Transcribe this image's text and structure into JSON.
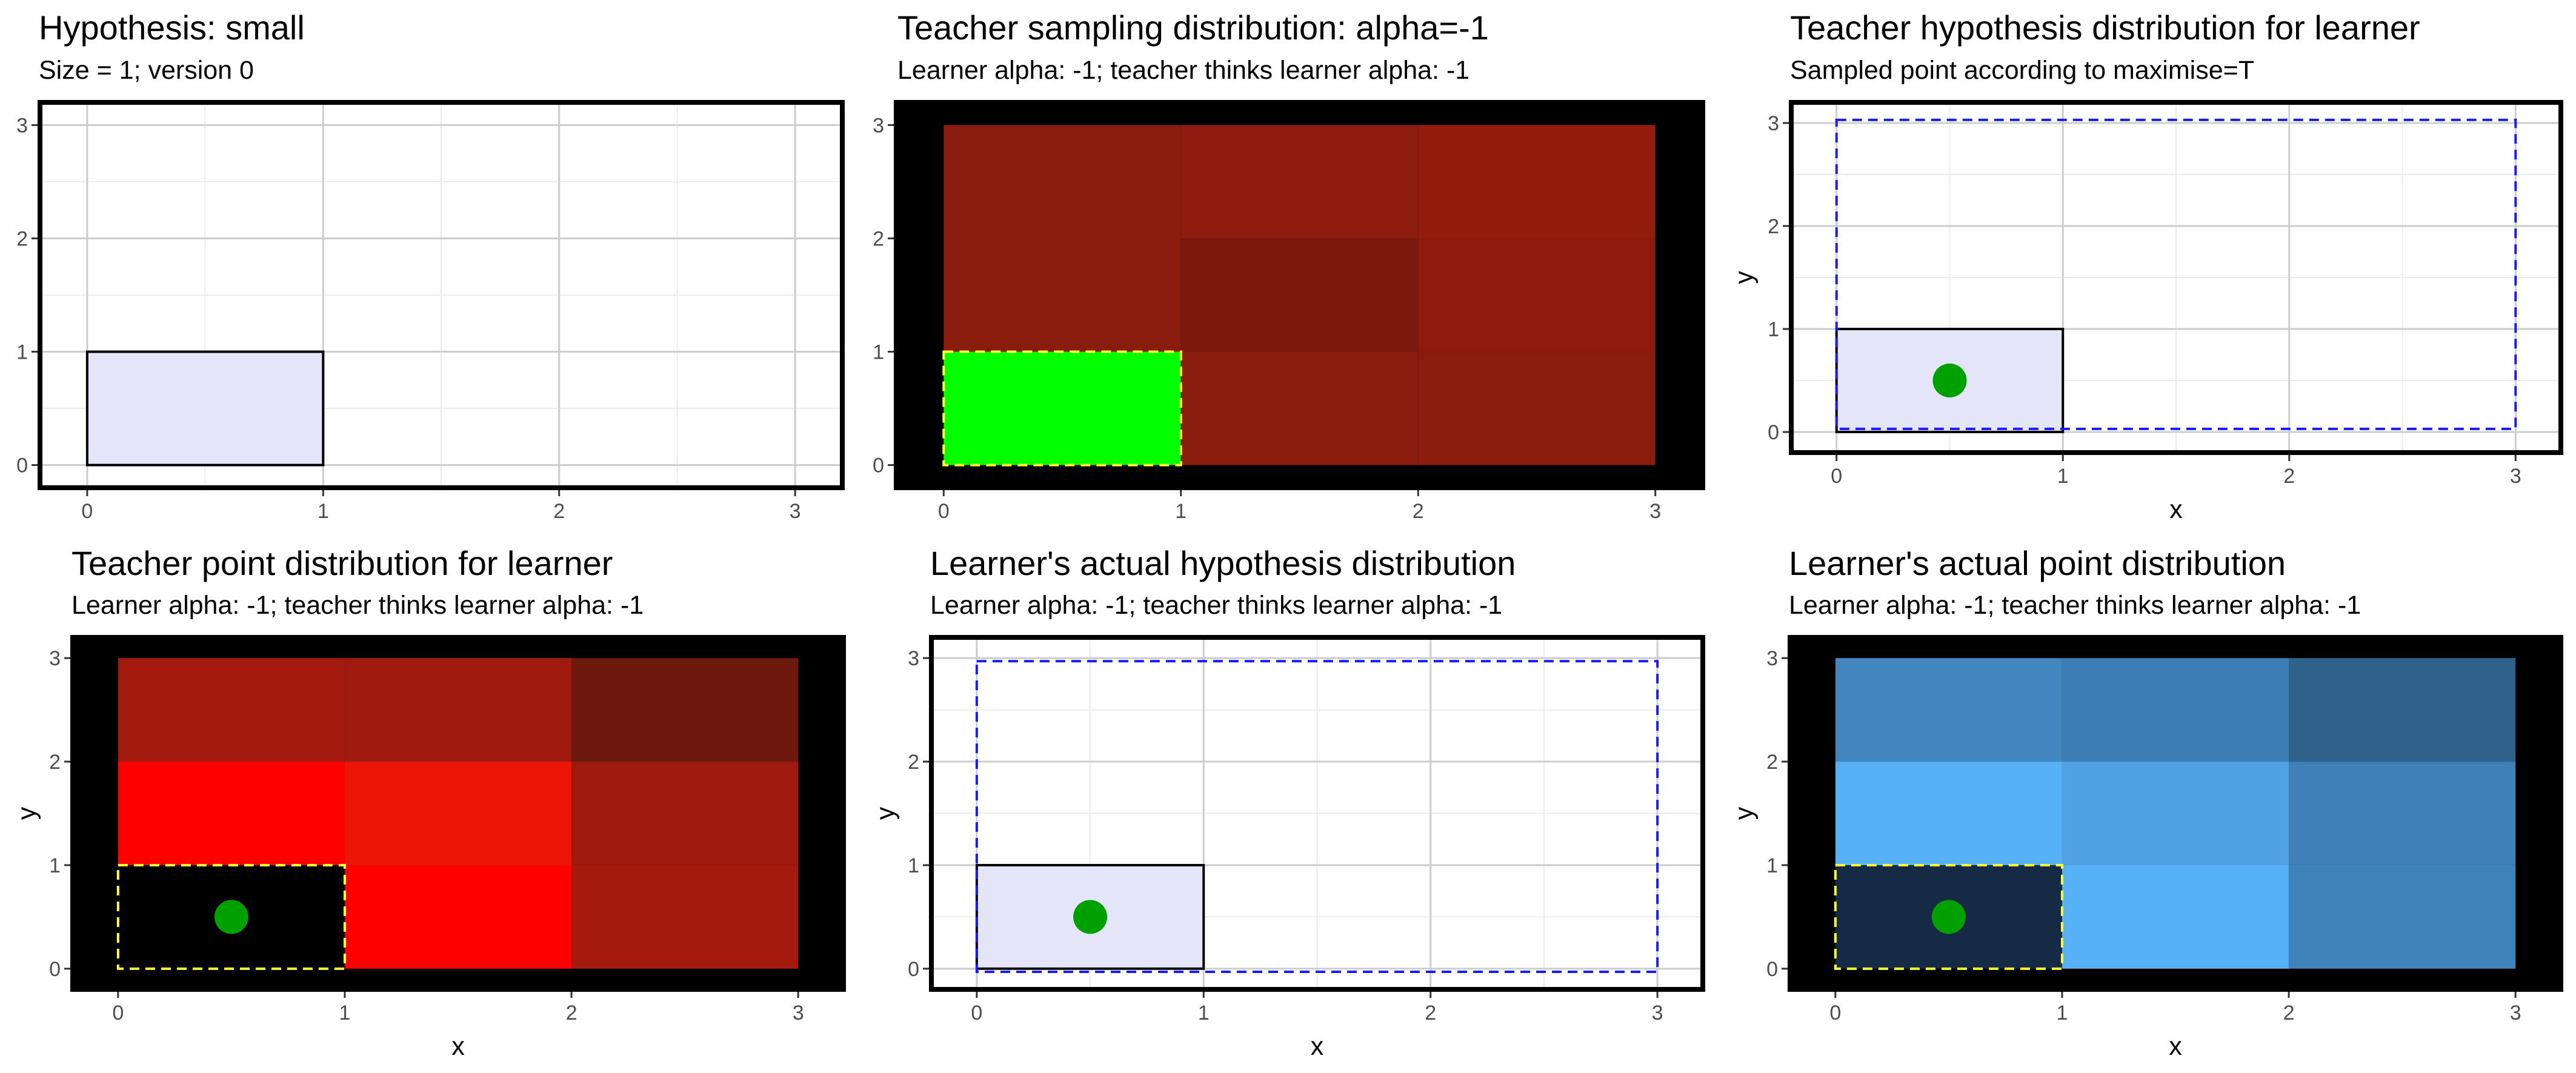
{
  "colors": {
    "background": "#ffffff",
    "hypothesis_fill": "#e5e5fa",
    "hypothesis_stroke": "#000000",
    "learner_region_stroke": "#1a1aff",
    "sample_region_stroke": "#ffff33",
    "sampled_point": "#00a000",
    "grid_major": "#cccccc",
    "grid_minor": "#ebebeb",
    "frame": "#000000"
  },
  "chart_data": [
    {
      "type": "heatmap",
      "title": "Hypothesis: small",
      "subtitle": "Size = 1; version 0",
      "xlabel": "",
      "ylabel": "",
      "xlim": [
        -0.2,
        3.2
      ],
      "ylim": [
        -0.2,
        3.2
      ],
      "xticks": [
        "0",
        "1",
        "2",
        "3"
      ],
      "yticks": [
        "0",
        "1",
        "2",
        "3"
      ],
      "grid": true,
      "background": "white",
      "cells": [],
      "hypothesis_rect": {
        "x0": 0,
        "y0": 0,
        "x1": 1,
        "y1": 1
      },
      "learner_rect": null,
      "dashed_rect": null,
      "points": []
    },
    {
      "type": "heatmap",
      "title": "Teacher sampling distribution: alpha=-1",
      "subtitle": "Learner alpha: -1; teacher thinks learner alpha: -1",
      "xlabel": "",
      "ylabel": "",
      "xlim": [
        -0.2,
        3.2
      ],
      "ylim": [
        -0.2,
        3.2
      ],
      "xticks": [
        "0",
        "1",
        "2",
        "3"
      ],
      "yticks": [
        "0",
        "1",
        "2",
        "3"
      ],
      "grid": false,
      "background": "black",
      "cells": [
        {
          "x": 0,
          "y": 0,
          "color": "#00ff00"
        },
        {
          "x": 1,
          "y": 0,
          "color": "#8a1c0e"
        },
        {
          "x": 2,
          "y": 0,
          "color": "#8a1c0e"
        },
        {
          "x": 0,
          "y": 1,
          "color": "#8a1c0e"
        },
        {
          "x": 1,
          "y": 1,
          "color": "#7a190d"
        },
        {
          "x": 2,
          "y": 1,
          "color": "#8e1c0e"
        },
        {
          "x": 0,
          "y": 2,
          "color": "#8a1c0e"
        },
        {
          "x": 1,
          "y": 2,
          "color": "#8d1c0e"
        },
        {
          "x": 2,
          "y": 2,
          "color": "#941c0c"
        }
      ],
      "hypothesis_rect": null,
      "learner_rect": null,
      "dashed_rect": {
        "x0": 0,
        "y0": 0,
        "x1": 1,
        "y1": 1
      },
      "points": []
    },
    {
      "type": "heatmap",
      "title": "Teacher hypothesis distribution for learner",
      "subtitle": "Sampled point according to maximise=T",
      "xlabel": "x",
      "ylabel": "y",
      "xlim": [
        -0.2,
        3.2
      ],
      "ylim": [
        -0.2,
        3.2
      ],
      "xticks": [
        "0",
        "1",
        "2",
        "3"
      ],
      "yticks": [
        "0",
        "1",
        "2",
        "3"
      ],
      "grid": true,
      "background": "white",
      "cells": [],
      "hypothesis_rect": {
        "x0": 0,
        "y0": 0,
        "x1": 1,
        "y1": 1
      },
      "learner_rect": {
        "x0": 0,
        "y0": 0.03,
        "x1": 3,
        "y1": 3.03
      },
      "dashed_rect": null,
      "points": [
        {
          "x": 0.5,
          "y": 0.5
        }
      ]
    },
    {
      "type": "heatmap",
      "title": "Teacher point distribution for learner",
      "subtitle": "Learner alpha: -1; teacher thinks learner alpha: -1",
      "xlabel": "x",
      "ylabel": "y",
      "xlim": [
        -0.2,
        3.2
      ],
      "ylim": [
        -0.2,
        3.2
      ],
      "xticks": [
        "0",
        "1",
        "2",
        "3"
      ],
      "yticks": [
        "0",
        "1",
        "2",
        "3"
      ],
      "grid": false,
      "background": "black",
      "cells": [
        {
          "x": 0,
          "y": 0,
          "color": "#000000"
        },
        {
          "x": 1,
          "y": 0,
          "color": "#ff0000"
        },
        {
          "x": 2,
          "y": 0,
          "color": "#a51a0f"
        },
        {
          "x": 0,
          "y": 1,
          "color": "#ff0000"
        },
        {
          "x": 1,
          "y": 1,
          "color": "#eb1508"
        },
        {
          "x": 2,
          "y": 1,
          "color": "#9e1a0e"
        },
        {
          "x": 0,
          "y": 2,
          "color": "#a51a0f"
        },
        {
          "x": 1,
          "y": 2,
          "color": "#9e1a0e"
        },
        {
          "x": 2,
          "y": 2,
          "color": "#6e190d"
        }
      ],
      "hypothesis_rect": null,
      "learner_rect": null,
      "dashed_rect": {
        "x0": 0,
        "y0": 0,
        "x1": 1,
        "y1": 1
      },
      "points": [
        {
          "x": 0.5,
          "y": 0.5
        }
      ]
    },
    {
      "type": "heatmap",
      "title": "Learner's actual hypothesis distribution",
      "subtitle": "Learner alpha: -1; teacher thinks learner alpha: -1",
      "xlabel": "x",
      "ylabel": "y",
      "xlim": [
        -0.2,
        3.2
      ],
      "ylim": [
        -0.2,
        3.2
      ],
      "xticks": [
        "0",
        "1",
        "2",
        "3"
      ],
      "yticks": [
        "0",
        "1",
        "2",
        "3"
      ],
      "grid": true,
      "background": "white",
      "cells": [],
      "hypothesis_rect": {
        "x0": 0,
        "y0": 0,
        "x1": 1,
        "y1": 1
      },
      "learner_rect": {
        "x0": 0,
        "y0": -0.03,
        "x1": 3,
        "y1": 2.97
      },
      "dashed_rect": null,
      "points": [
        {
          "x": 0.5,
          "y": 0.5
        }
      ]
    },
    {
      "type": "heatmap",
      "title": "Learner's actual point distribution",
      "subtitle": "Learner alpha: -1; teacher thinks learner alpha: -1",
      "xlabel": "x",
      "ylabel": "y",
      "xlim": [
        -0.2,
        3.2
      ],
      "ylim": [
        -0.2,
        3.2
      ],
      "xticks": [
        "0",
        "1",
        "2",
        "3"
      ],
      "yticks": [
        "0",
        "1",
        "2",
        "3"
      ],
      "grid": false,
      "background": "black",
      "cells": [
        {
          "x": 0,
          "y": 0,
          "color": "#152a45"
        },
        {
          "x": 1,
          "y": 0,
          "color": "#56b1f7"
        },
        {
          "x": 2,
          "y": 0,
          "color": "#3f83bb"
        },
        {
          "x": 0,
          "y": 1,
          "color": "#56b1f7"
        },
        {
          "x": 1,
          "y": 1,
          "color": "#4fa3e4"
        },
        {
          "x": 2,
          "y": 1,
          "color": "#3e80b7"
        },
        {
          "x": 0,
          "y": 2,
          "color": "#4385be"
        },
        {
          "x": 1,
          "y": 2,
          "color": "#3c7eb4"
        },
        {
          "x": 2,
          "y": 2,
          "color": "#30618b"
        }
      ],
      "hypothesis_rect": null,
      "learner_rect": null,
      "dashed_rect": {
        "x0": 0,
        "y0": 0,
        "x1": 1,
        "y1": 1
      },
      "points": [
        {
          "x": 0.5,
          "y": 0.5
        }
      ]
    }
  ]
}
